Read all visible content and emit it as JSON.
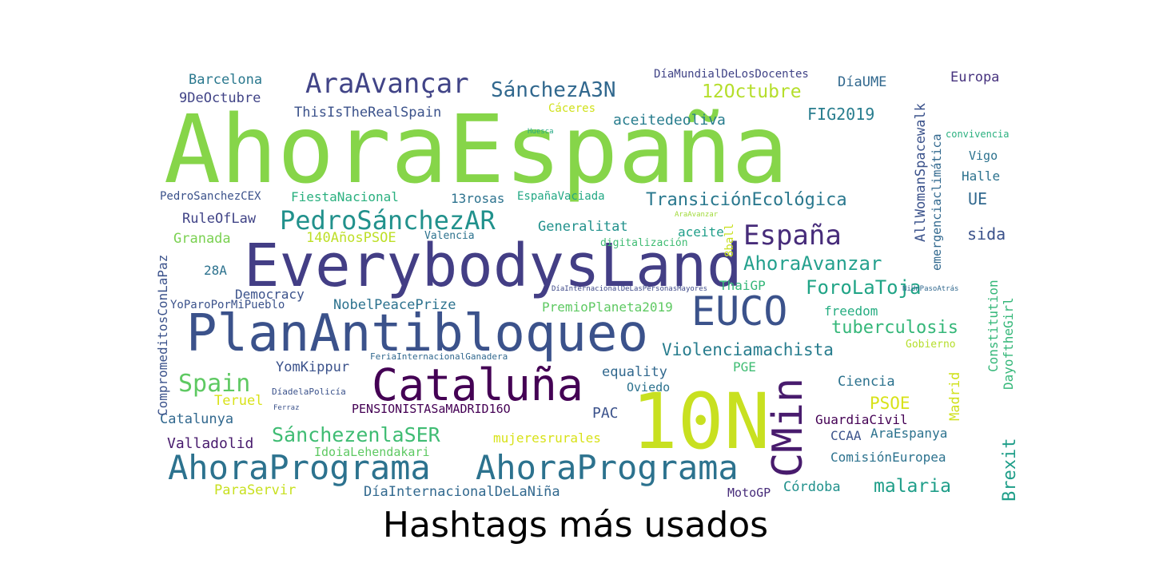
{
  "title": "Hashtags más usados",
  "words": [
    {
      "text": "AhoraEspaña",
      "color": "#86d549"
    },
    {
      "text": "EverybodysLand",
      "color": "#433e85"
    },
    {
      "text": "PlanAntibloqueo",
      "color": "#3b528b"
    },
    {
      "text": "10N",
      "color": "#c8e020"
    },
    {
      "text": "Cataluña",
      "color": "#440154"
    },
    {
      "text": "AhoraPrograma",
      "color": "#2c728e"
    },
    {
      "text": "AhoraPrograma",
      "color": "#2c728e"
    },
    {
      "text": "EUCO",
      "color": "#3b528b"
    },
    {
      "text": "CMin",
      "color": "#481b6d"
    },
    {
      "text": "AraAvançar",
      "color": "#414487"
    },
    {
      "text": "SánchezA3N",
      "color": "#31688e"
    },
    {
      "text": "PedroSánchezAR",
      "color": "#21918c"
    },
    {
      "text": "España",
      "color": "#472c7a"
    },
    {
      "text": "TransiciónEcológica",
      "color": "#2a788e"
    },
    {
      "text": "AhoraAvanzar",
      "color": "#25a18e"
    },
    {
      "text": "ForoLaToja",
      "color": "#20a486"
    },
    {
      "text": "tuberculosis",
      "color": "#35b779"
    },
    {
      "text": "Violenciamachista",
      "color": "#287d8e"
    },
    {
      "text": "Spain",
      "color": "#5ec962"
    },
    {
      "text": "SánchezenlaSER",
      "color": "#3fbc73"
    },
    {
      "text": "malaria",
      "color": "#1f9e89"
    },
    {
      "text": "Barcelona",
      "color": "#2a788e"
    },
    {
      "text": "9DeOctubre",
      "color": "#414487"
    },
    {
      "text": "ThisIsTheRealSpain",
      "color": "#3b528b"
    },
    {
      "text": "12Octubre",
      "color": "#b5de2b"
    },
    {
      "text": "aceitedeoliva",
      "color": "#287d8e"
    },
    {
      "text": "FIG2019",
      "color": "#287d8e"
    },
    {
      "text": "DíaMundialDeLosDocentes",
      "color": "#414487"
    },
    {
      "text": "DíaUME",
      "color": "#31688e"
    },
    {
      "text": "Europa",
      "color": "#46327e"
    },
    {
      "text": "Cáceres",
      "color": "#d0e11c"
    },
    {
      "text": "Huesca",
      "color": "#22a884"
    },
    {
      "text": "convivencia",
      "color": "#2ab07f"
    },
    {
      "text": "Vigo",
      "color": "#2c728e"
    },
    {
      "text": "Halle",
      "color": "#2c728e"
    },
    {
      "text": "UE",
      "color": "#31688e"
    },
    {
      "text": "sida",
      "color": "#3b528b"
    },
    {
      "text": "PedroSanchezCEX",
      "color": "#3b528b"
    },
    {
      "text": "FiestaNacional",
      "color": "#2ab07f"
    },
    {
      "text": "13rosas",
      "color": "#2c728e"
    },
    {
      "text": "EspañaVaciada",
      "color": "#22a884"
    },
    {
      "text": "RuleOfLaw",
      "color": "#414487"
    },
    {
      "text": "Generalitat",
      "color": "#21918c"
    },
    {
      "text": "aceite",
      "color": "#1f9e89"
    },
    {
      "text": "AraAvanzar",
      "color": "#a0da39"
    },
    {
      "text": "Granada",
      "color": "#7ad151"
    },
    {
      "text": "140AñosPSOE",
      "color": "#bddf26"
    },
    {
      "text": "Valencia",
      "color": "#2c728e"
    },
    {
      "text": "digitalización",
      "color": "#3fbc73"
    },
    {
      "text": "NiUnPasoAtrás",
      "color": "#31688e"
    },
    {
      "text": "28A",
      "color": "#2c728e"
    },
    {
      "text": "DíaInternacionalDeLasPersonasMayores",
      "color": "#3e4989"
    },
    {
      "text": "ThaiGP",
      "color": "#35b779"
    },
    {
      "text": "Democracy",
      "color": "#3b528b"
    },
    {
      "text": "YoParoPorMiPueblo",
      "color": "#3b528b"
    },
    {
      "text": "NobelPeacePrize",
      "color": "#2c728e"
    },
    {
      "text": "PremioPlaneta2019",
      "color": "#5ec962"
    },
    {
      "text": "freedom",
      "color": "#26ad81"
    },
    {
      "text": "FeriaInternacionalGanadera",
      "color": "#31688e"
    },
    {
      "text": "Gobierno",
      "color": "#b5de2b"
    },
    {
      "text": "YomKippur",
      "color": "#3b528b"
    },
    {
      "text": "equality",
      "color": "#31688e"
    },
    {
      "text": "PGE",
      "color": "#3fbc73"
    },
    {
      "text": "Ciencia",
      "color": "#2c728e"
    },
    {
      "text": "DíadelaPolicía",
      "color": "#3b528b"
    },
    {
      "text": "Oviedo",
      "color": "#2c728e"
    },
    {
      "text": "Teruel",
      "color": "#d8e219"
    },
    {
      "text": "Ferraz",
      "color": "#3b528b"
    },
    {
      "text": "PENSIONISTASaMADRID16O",
      "color": "#440154"
    },
    {
      "text": "PSOE",
      "color": "#d8e219"
    },
    {
      "text": "GuardiaCivil",
      "color": "#440154"
    },
    {
      "text": "Catalunya",
      "color": "#31688e"
    },
    {
      "text": "PAC",
      "color": "#3b528b"
    },
    {
      "text": "CCAA",
      "color": "#3b528b"
    },
    {
      "text": "AraEspanya",
      "color": "#2c728e"
    },
    {
      "text": "Valladolid",
      "color": "#481b6d"
    },
    {
      "text": "mujeresrurales",
      "color": "#d8e219"
    },
    {
      "text": "IdoiaLehendakari",
      "color": "#5ec962"
    },
    {
      "text": "ComisiónEuropea",
      "color": "#2c728e"
    },
    {
      "text": "ParaServir",
      "color": "#c8e020"
    },
    {
      "text": "DíaInternacionalDeLaNiña",
      "color": "#31688e"
    },
    {
      "text": "MotoGP",
      "color": "#472c7a"
    },
    {
      "text": "Córdoba",
      "color": "#21918c"
    },
    {
      "text": "AllWomanSpacewalk",
      "color": "#3b528b"
    },
    {
      "text": "emergenciaclimática",
      "color": "#31688e"
    },
    {
      "text": "CompromeditosConLaPaz",
      "color": "#3b528b"
    },
    {
      "text": "8ball",
      "color": "#c8e020"
    },
    {
      "text": "Constitution",
      "color": "#35b779"
    },
    {
      "text": "DayoftheGirl",
      "color": "#35b779"
    },
    {
      "text": "Madrid",
      "color": "#d0e11c"
    },
    {
      "text": "Brexit",
      "color": "#1f9e89"
    }
  ]
}
